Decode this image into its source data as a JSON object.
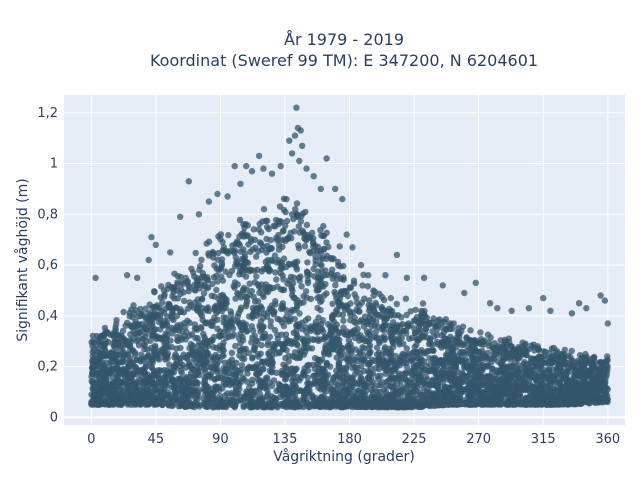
{
  "chart_data": {
    "type": "scatter",
    "title_lines": [
      "År 1979 - 2019",
      "Koordinat (Sweref 99 TM): E 347200, N 6204601"
    ],
    "xlabel": "Vågriktning (grader)",
    "ylabel": "Signifikant våghöjd (m)",
    "xlim": [
      -19,
      372
    ],
    "ylim": [
      -0.03,
      1.27
    ],
    "x_ticks": [
      0,
      45,
      90,
      135,
      180,
      225,
      270,
      315,
      360
    ],
    "x_tick_labels": [
      "0",
      "45",
      "90",
      "135",
      "180",
      "225",
      "270",
      "315",
      "360"
    ],
    "y_ticks": [
      0,
      0.2,
      0.4,
      0.6,
      0.8,
      1.0,
      1.2
    ],
    "y_tick_labels": [
      "0",
      "0,2",
      "0,4",
      "0,6",
      "0,8",
      "1",
      "1,2"
    ],
    "grid": true,
    "marker_color": "#34566b",
    "background_color": "#e5ecf6",
    "series": [
      {
        "name": "",
        "envelope_x": [
          0,
          20,
          45,
          70,
          90,
          110,
          135,
          150,
          160,
          180,
          200,
          225,
          250,
          270,
          300,
          330,
          360
        ],
        "envelope_upper_y": [
          0.33,
          0.4,
          0.5,
          0.63,
          0.72,
          0.8,
          0.88,
          0.86,
          0.77,
          0.6,
          0.5,
          0.45,
          0.39,
          0.34,
          0.3,
          0.27,
          0.24
        ],
        "envelope_lower_y": [
          0.05,
          0.05,
          0.05,
          0.04,
          0.04,
          0.04,
          0.04,
          0.04,
          0.04,
          0.04,
          0.04,
          0.04,
          0.05,
          0.05,
          0.05,
          0.05,
          0.06
        ],
        "outliers": [
          {
            "x": 3,
            "y": 0.55
          },
          {
            "x": 25,
            "y": 0.56
          },
          {
            "x": 32,
            "y": 0.55
          },
          {
            "x": 40,
            "y": 0.62
          },
          {
            "x": 42,
            "y": 0.71
          },
          {
            "x": 45,
            "y": 0.68
          },
          {
            "x": 55,
            "y": 0.65
          },
          {
            "x": 62,
            "y": 0.79
          },
          {
            "x": 68,
            "y": 0.93
          },
          {
            "x": 75,
            "y": 0.8
          },
          {
            "x": 82,
            "y": 0.85
          },
          {
            "x": 88,
            "y": 0.88
          },
          {
            "x": 95,
            "y": 0.87
          },
          {
            "x": 100,
            "y": 0.99
          },
          {
            "x": 104,
            "y": 0.92
          },
          {
            "x": 108,
            "y": 0.99
          },
          {
            "x": 112,
            "y": 0.97
          },
          {
            "x": 117,
            "y": 1.03
          },
          {
            "x": 120,
            "y": 0.98
          },
          {
            "x": 126,
            "y": 0.96
          },
          {
            "x": 132,
            "y": 0.99
          },
          {
            "x": 138,
            "y": 1.09
          },
          {
            "x": 140,
            "y": 1.04
          },
          {
            "x": 142,
            "y": 1.11
          },
          {
            "x": 143,
            "y": 1.22
          },
          {
            "x": 144,
            "y": 1.14
          },
          {
            "x": 146,
            "y": 1.13
          },
          {
            "x": 147,
            "y": 1.07
          },
          {
            "x": 145,
            "y": 1.01
          },
          {
            "x": 150,
            "y": 0.98
          },
          {
            "x": 155,
            "y": 0.95
          },
          {
            "x": 160,
            "y": 0.9
          },
          {
            "x": 164,
            "y": 1.02
          },
          {
            "x": 170,
            "y": 0.9
          },
          {
            "x": 175,
            "y": 0.86
          },
          {
            "x": 178,
            "y": 0.72
          },
          {
            "x": 182,
            "y": 0.67
          },
          {
            "x": 188,
            "y": 0.6
          },
          {
            "x": 193,
            "y": 0.56
          },
          {
            "x": 205,
            "y": 0.56
          },
          {
            "x": 213,
            "y": 0.64
          },
          {
            "x": 220,
            "y": 0.55
          },
          {
            "x": 232,
            "y": 0.55
          },
          {
            "x": 245,
            "y": 0.52
          },
          {
            "x": 260,
            "y": 0.49
          },
          {
            "x": 268,
            "y": 0.53
          },
          {
            "x": 278,
            "y": 0.45
          },
          {
            "x": 283,
            "y": 0.43
          },
          {
            "x": 293,
            "y": 0.42
          },
          {
            "x": 305,
            "y": 0.43
          },
          {
            "x": 315,
            "y": 0.47
          },
          {
            "x": 320,
            "y": 0.42
          },
          {
            "x": 335,
            "y": 0.41
          },
          {
            "x": 340,
            "y": 0.45
          },
          {
            "x": 345,
            "y": 0.43
          },
          {
            "x": 355,
            "y": 0.48
          },
          {
            "x": 358,
            "y": 0.46
          },
          {
            "x": 360,
            "y": 0.37
          }
        ]
      }
    ]
  }
}
